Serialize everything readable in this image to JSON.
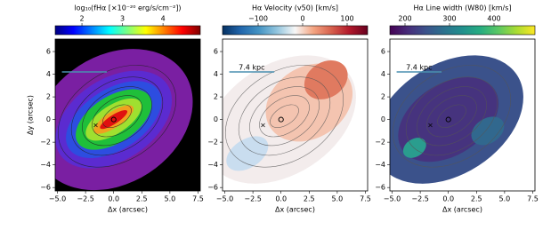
{
  "chart_data": [
    {
      "type": "map",
      "colorbar_label": "log₁₀(fHα [×10⁻²⁰ erg/s/cm⁻²])",
      "colormap": "jet",
      "clim": [
        1.34,
        4.92
      ],
      "cticks": [
        2,
        3,
        4
      ],
      "xlabel": "Δx (arcsec)",
      "ylabel": "Δy (arcsec)",
      "xlim": [
        -5.2,
        7.7
      ],
      "ylim": [
        -6.3,
        7.1
      ],
      "xticks": [
        {
          "value": -5,
          "label": "−5.0"
        },
        {
          "value": -2.5,
          "label": "−2.5"
        },
        {
          "value": 0,
          "label": "0.0"
        },
        {
          "value": 2.5,
          "label": "2.5"
        },
        {
          "value": 5,
          "label": "5.0"
        },
        {
          "value": 7.5,
          "label": "7.5"
        }
      ],
      "yticks": [
        {
          "value": -6,
          "label": "−6"
        },
        {
          "value": -4,
          "label": "−4"
        },
        {
          "value": -2,
          "label": "−2"
        },
        0,
        2,
        4,
        6
      ],
      "points": {
        "x": [
          -1.6,
          0.0
        ],
        "y": [
          -0.5,
          0.0
        ]
      }
    },
    {
      "type": "map",
      "colorbar_label": "Hα Velocity (v50) [km/s]",
      "colormap": "RdBu_r",
      "clim": [
        -180,
        146
      ],
      "cticks": [
        {
          "value": -100,
          "label": "−100"
        },
        0,
        100
      ],
      "xlabel": "Δx (arcsec)",
      "xlim": [
        -5.2,
        7.7
      ],
      "ylim": [
        -6.3,
        7.1
      ],
      "xticks": [
        {
          "value": -5,
          "label": "−5.0"
        },
        {
          "value": -2.5,
          "label": "−2.5"
        },
        {
          "value": 0,
          "label": "0.0"
        },
        {
          "value": 2.5,
          "label": "2.5"
        },
        {
          "value": 5,
          "label": "5.0"
        },
        {
          "value": 7.5,
          "label": "7.5"
        }
      ],
      "yticks": [
        {
          "value": -6,
          "label": "−6"
        },
        {
          "value": -4,
          "label": "−4"
        },
        {
          "value": -2,
          "label": "−2"
        },
        0,
        2,
        4,
        6
      ],
      "scalebar": "7.4 kpc",
      "points": {
        "x": [
          -1.6,
          0.0
        ],
        "y": [
          -0.5,
          0.0
        ]
      }
    },
    {
      "type": "map",
      "colorbar_label": "Hα Line width (W80) [km/s]",
      "colormap": "viridis",
      "clim": [
        166,
        492
      ],
      "cticks": [
        200,
        300,
        400
      ],
      "xlabel": "Δx (arcsec)",
      "xlim": [
        -5.2,
        7.7
      ],
      "ylim": [
        -6.3,
        7.1
      ],
      "xticks": [
        {
          "value": -5,
          "label": "−5.0"
        },
        {
          "value": -2.5,
          "label": "−2.5"
        },
        {
          "value": 0,
          "label": "0.0"
        },
        {
          "value": 2.5,
          "label": "2.5"
        },
        {
          "value": 5,
          "label": "5.0"
        },
        {
          "value": 7.5,
          "label": "7.5"
        }
      ],
      "yticks": [
        {
          "value": -6,
          "label": "−6"
        },
        {
          "value": -4,
          "label": "−4"
        },
        {
          "value": -2,
          "label": "−2"
        },
        0,
        2,
        4,
        6
      ],
      "scalebar": "7.4 kpc",
      "points": {
        "x": [
          -1.6,
          0.0
        ],
        "y": [
          -0.5,
          0.0
        ]
      }
    }
  ]
}
